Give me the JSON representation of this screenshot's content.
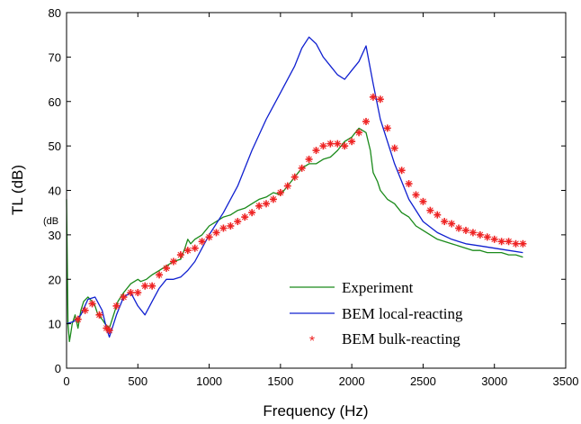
{
  "chart_data": {
    "type": "line",
    "xlabel": "Frequency (Hz)",
    "ylabel": "TL (dB)",
    "xlim": [
      0,
      3500
    ],
    "ylim": [
      0,
      80
    ],
    "xticks": [
      "0",
      "500",
      "1000",
      "1500",
      "2000",
      "2500",
      "3000",
      "3500"
    ],
    "yticks": [
      "0",
      "10",
      "20",
      "30",
      "40",
      "50",
      "60",
      "70",
      "80"
    ],
    "stray_label": "(dB",
    "grid": false,
    "legend_position": "bottom-right",
    "series": [
      {
        "name": "Experiment",
        "style": "line",
        "color": "#1a8a1a",
        "x": [
          0,
          10,
          20,
          30,
          40,
          60,
          80,
          100,
          120,
          150,
          180,
          200,
          220,
          250,
          270,
          300,
          330,
          360,
          400,
          450,
          500,
          520,
          560,
          600,
          650,
          700,
          750,
          800,
          830,
          850,
          870,
          900,
          950,
          1000,
          1050,
          1100,
          1150,
          1200,
          1250,
          1300,
          1350,
          1400,
          1450,
          1500,
          1550,
          1600,
          1650,
          1700,
          1750,
          1800,
          1850,
          1900,
          1950,
          2000,
          2050,
          2100,
          2130,
          2150,
          2180,
          2200,
          2250,
          2300,
          2350,
          2400,
          2450,
          2500,
          2550,
          2600,
          2650,
          2700,
          2750,
          2800,
          2850,
          2900,
          2950,
          3000,
          3050,
          3100,
          3150,
          3200
        ],
        "y": [
          38,
          10,
          6,
          8,
          10,
          12,
          9,
          13,
          15,
          16,
          15,
          14,
          12,
          11,
          10,
          9,
          12,
          15,
          17,
          19,
          20,
          19.5,
          20,
          21,
          22,
          23,
          24,
          24.5,
          27,
          29,
          28,
          29,
          30,
          32,
          33,
          34,
          34.5,
          35.5,
          36,
          37,
          38,
          38.5,
          39.5,
          39,
          41,
          43,
          45,
          46,
          46,
          47,
          47.5,
          49,
          51,
          52,
          54,
          53,
          49,
          44,
          42,
          40,
          38,
          37,
          35,
          34,
          32,
          31,
          30,
          29,
          28.5,
          28,
          27.5,
          27,
          26.5,
          26.5,
          26,
          26,
          26,
          25.5,
          25.5,
          25
        ]
      },
      {
        "name": "BEM local-reacting",
        "style": "line",
        "color": "#1020d0",
        "x": [
          0,
          50,
          100,
          150,
          200,
          250,
          280,
          300,
          350,
          400,
          450,
          500,
          550,
          600,
          650,
          700,
          750,
          800,
          850,
          900,
          950,
          1000,
          1100,
          1200,
          1300,
          1400,
          1500,
          1600,
          1650,
          1700,
          1750,
          1800,
          1850,
          1900,
          1950,
          2000,
          2050,
          2100,
          2150,
          2200,
          2300,
          2400,
          2500,
          2600,
          2700,
          2800,
          2900,
          3000,
          3100,
          3200
        ],
        "y": [
          10,
          10.5,
          12,
          15.5,
          16,
          13,
          9,
          7,
          12,
          16,
          17,
          14,
          12,
          15,
          18,
          20,
          20,
          20.5,
          22,
          24,
          27,
          30,
          35,
          41,
          49,
          56,
          62,
          68,
          72,
          74.5,
          73,
          70,
          68,
          66,
          65,
          67,
          69,
          72.5,
          64,
          56,
          46,
          38,
          33,
          30.5,
          29,
          28,
          27.5,
          27,
          26.5,
          26
        ]
      },
      {
        "name": "BEM bulk-reacting",
        "style": "markers",
        "color": "#ee2222",
        "x": [
          80,
          130,
          180,
          230,
          280,
          300,
          350,
          400,
          450,
          500,
          550,
          600,
          650,
          700,
          750,
          800,
          850,
          900,
          950,
          1000,
          1050,
          1100,
          1150,
          1200,
          1250,
          1300,
          1350,
          1400,
          1450,
          1500,
          1550,
          1600,
          1650,
          1700,
          1750,
          1800,
          1850,
          1900,
          1950,
          2000,
          2050,
          2100,
          2150,
          2200,
          2250,
          2300,
          2350,
          2400,
          2450,
          2500,
          2550,
          2600,
          2650,
          2700,
          2750,
          2800,
          2850,
          2900,
          2950,
          3000,
          3050,
          3100,
          3150,
          3200
        ],
        "y": [
          11,
          13,
          14.5,
          12,
          9,
          8.5,
          14,
          16,
          17,
          17,
          18.5,
          18.5,
          21,
          22.5,
          24,
          25.5,
          26.5,
          27,
          28.5,
          29.5,
          30.5,
          31.5,
          32,
          33,
          34,
          35,
          36.5,
          37,
          38,
          39.5,
          41,
          43,
          45,
          47,
          49,
          50,
          50.5,
          50.5,
          50,
          51,
          53,
          55.5,
          61,
          60.5,
          54,
          49.5,
          44.5,
          41.5,
          39,
          37.5,
          35.5,
          34.5,
          33,
          32.5,
          31.5,
          31,
          30.5,
          30,
          29.5,
          29,
          28.5,
          28.5,
          28,
          28
        ]
      }
    ]
  }
}
